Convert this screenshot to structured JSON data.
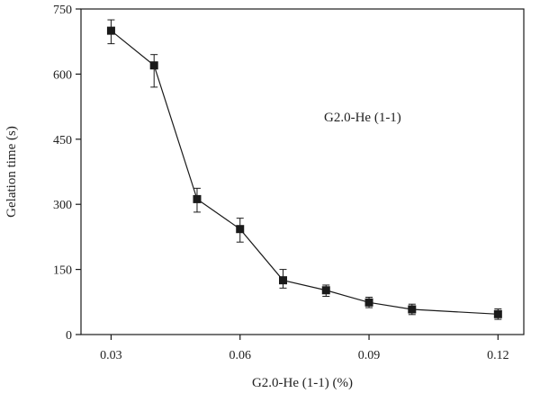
{
  "chart_data": {
    "type": "line",
    "xlabel": "G2.0-He (1-1) (%)",
    "ylabel": "Gelation time (s)",
    "annotation": "G2.0-He (1-1)",
    "xlim": [
      0.023,
      0.126
    ],
    "ylim": [
      0,
      750
    ],
    "xticks": [
      0.03,
      0.06,
      0.09,
      0.12
    ],
    "xtick_labels": [
      "0.03",
      "0.06",
      "0.09",
      "0.12"
    ],
    "yticks": [
      0,
      150,
      300,
      450,
      600,
      750
    ],
    "ytick_labels": [
      "0",
      "150",
      "300",
      "450",
      "600",
      "750"
    ],
    "grid": false,
    "marker": "square",
    "color": "#1a1a1a",
    "series": [
      {
        "x": [
          0.03,
          0.04,
          0.05,
          0.06,
          0.07,
          0.08,
          0.09,
          0.1,
          0.12
        ],
        "y": [
          700,
          620,
          312,
          243,
          125,
          102,
          74,
          58,
          47
        ],
        "error_low": [
          30,
          50,
          30,
          30,
          18,
          14,
          12,
          12,
          12
        ],
        "error_high": [
          25,
          25,
          25,
          25,
          25,
          12,
          12,
          12,
          12
        ]
      }
    ]
  }
}
